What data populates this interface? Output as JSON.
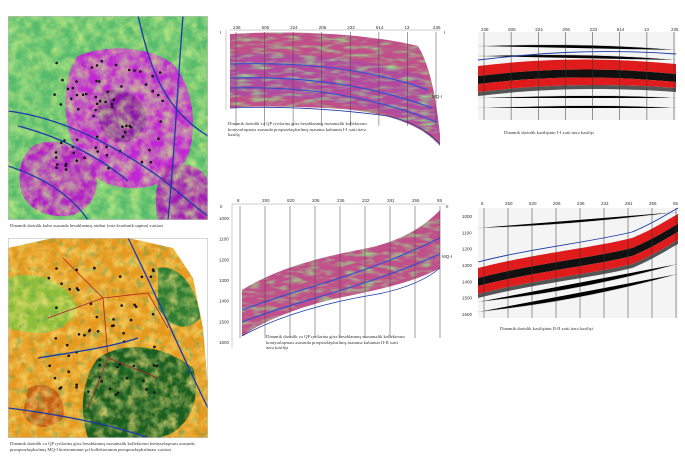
{
  "panels": {
    "map_top": {
      "caption": "Dinamik dərinlik kubu əsasında hesablanmış atribut (orta kvadratik sapma) xəritəsi"
    },
    "map_bottom": {
      "caption_line1": "Dinamik dərinlik və QP ryrilərinə görə hesablanmış məsaməlik kollektorun kontyurlaşması əsasında",
      "caption_line2": "prosqnozlaşdırılmış MQ-I horizontunun şəf kollektorunun prosqnozlaşdırılması xəritəsi"
    },
    "section_top_left": {
      "caption_line1": "Dinamik dərinlik və QP ryrilərinə görə hesablanmış məsaməlik kollektorun",
      "caption_line2": "kontyurlaşması əsasında proqnozlaşdırılmış məsamə kubunun I-I xətti üzrə",
      "caption_line3": "kəsiliş",
      "left_label": "I",
      "right_label": "I",
      "horizon_label": "MQ-I",
      "wells": [
        "238",
        "605",
        "224",
        "206",
        "233",
        "614",
        "13",
        "235"
      ]
    },
    "section_top_right": {
      "caption": "Dinamik dərinlik kəsilişinin I-I xətti üzrə kəsilişi",
      "wells": [
        "238",
        "605",
        "224",
        "206",
        "233",
        "614",
        "13",
        "235"
      ]
    },
    "section_bottom_left": {
      "caption_line1": "Dinamik dərinlik və QP ryrilərinə görə hesablanmış məsaməlik kollektorun",
      "caption_line2": "kontyurlaşması əsasında proqnozlaşdırılmış məsamə kubunun II-II xətti",
      "caption_line3": "üzrə kəsilişi",
      "left_label": "II",
      "right_label": "II",
      "horizon_label": "MQ-I",
      "wells": [
        "8",
        "250",
        "620",
        "206",
        "236",
        "232",
        "281",
        "255",
        "55"
      ]
    },
    "section_bottom_right": {
      "caption": "Dinamik dərinlik kəsilişinin II-II xətti üzrə kəsilişi",
      "wells": [
        "8",
        "250",
        "620",
        "206",
        "236",
        "232",
        "281",
        "255",
        "55"
      ]
    }
  },
  "depth_ticks": [
    "1000",
    "1100",
    "1200",
    "1300",
    "1400",
    "1500",
    "1600"
  ],
  "colors": {
    "attr_magenta": "#c026d3",
    "attr_green": "#5fc34a",
    "attr_yellow": "#e8e23a",
    "forecast_orange": "#e69a1f",
    "forecast_darkgreen": "#1b5e20",
    "seis_red": "#e01b1b",
    "seis_black": "#111111",
    "fault_blue": "#1a3aa8"
  }
}
